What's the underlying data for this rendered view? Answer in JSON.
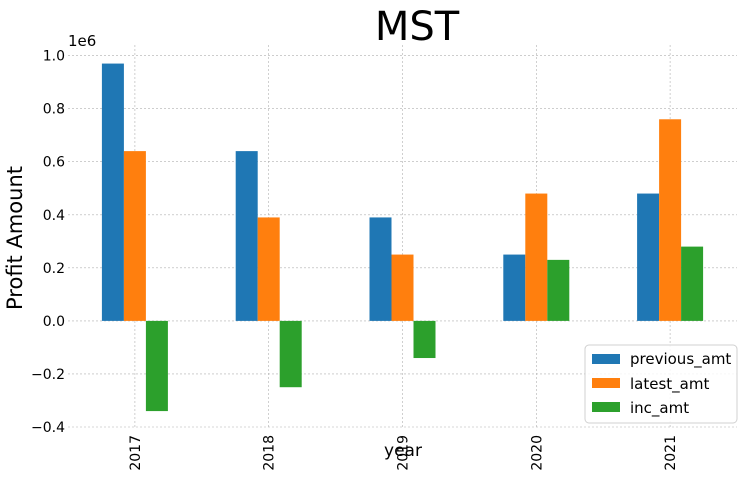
{
  "chart_data": {
    "type": "bar",
    "title": "MST",
    "xlabel": "year",
    "ylabel": "Profit Amount",
    "y_offset_label": "1e6",
    "categories": [
      "2017",
      "2018",
      "2019",
      "2020",
      "2021"
    ],
    "series": [
      {
        "name": "previous_amt",
        "color": "#1f77b4",
        "values": [
          0.97,
          0.64,
          0.39,
          0.25,
          0.48
        ]
      },
      {
        "name": "latest_amt",
        "color": "#ff7f0e",
        "values": [
          0.64,
          0.39,
          0.25,
          0.48,
          0.76
        ]
      },
      {
        "name": "inc_amt",
        "color": "#2ca02c",
        "values": [
          -0.34,
          -0.25,
          -0.14,
          0.23,
          0.28
        ]
      }
    ],
    "ylim": [
      -0.4,
      1.04
    ],
    "yticks": [
      {
        "value": -0.4,
        "label": "−0.4"
      },
      {
        "value": -0.2,
        "label": "−0.2"
      },
      {
        "value": 0.0,
        "label": "0.0"
      },
      {
        "value": 0.2,
        "label": "0.2"
      },
      {
        "value": 0.4,
        "label": "0.4"
      },
      {
        "value": 0.6,
        "label": "0.6"
      },
      {
        "value": 0.8,
        "label": "0.8"
      },
      {
        "value": 1.0,
        "label": "1.0"
      }
    ],
    "grid": true,
    "legend_position": "bottom-right"
  }
}
